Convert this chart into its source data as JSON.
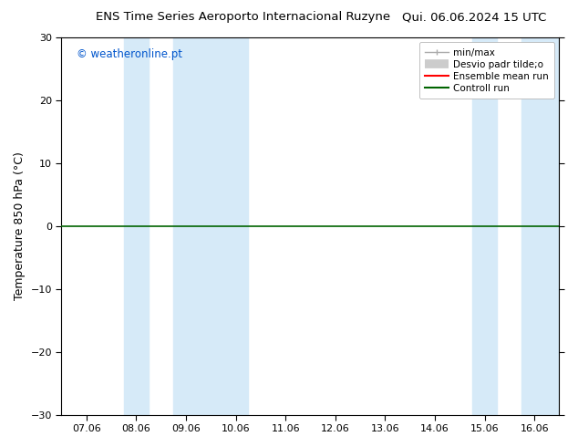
{
  "title_left": "ENS Time Series Aeroporto Internacional Ruzyne",
  "title_right": "Qui. 06.06.2024 15 UTC",
  "ylabel": "Temperature 850 hPa (°C)",
  "ylim": [
    -30,
    30
  ],
  "yticks": [
    -30,
    -20,
    -10,
    0,
    10,
    20,
    30
  ],
  "xtick_labels": [
    "07.06",
    "08.06",
    "09.06",
    "10.06",
    "11.06",
    "12.06",
    "13.06",
    "14.06",
    "15.06",
    "16.06"
  ],
  "watermark": "© weatheronline.pt",
  "watermark_color": "#0055cc",
  "bg_color": "#ffffff",
  "plot_bg_color": "#ffffff",
  "line_y0_color": "#006400",
  "line_y0_value": 0,
  "blue_band_color": "#d6eaf8",
  "shade_bands": [
    {
      "xmin": 0.75,
      "xmax": 1.25
    },
    {
      "xmin": 1.75,
      "xmax": 3.25
    },
    {
      "xmin": 7.75,
      "xmax": 8.25
    },
    {
      "xmin": 8.75,
      "xmax": 9.5
    }
  ],
  "legend_labels": [
    "min/max",
    "Desvio padr tilde;o",
    "Ensemble mean run",
    "Controll run"
  ],
  "legend_colors": [
    "#aaaaaa",
    "#cccccc",
    "#ff0000",
    "#006400"
  ],
  "figsize": [
    6.34,
    4.9
  ],
  "dpi": 100,
  "xlim": [
    -0.5,
    9.5
  ]
}
